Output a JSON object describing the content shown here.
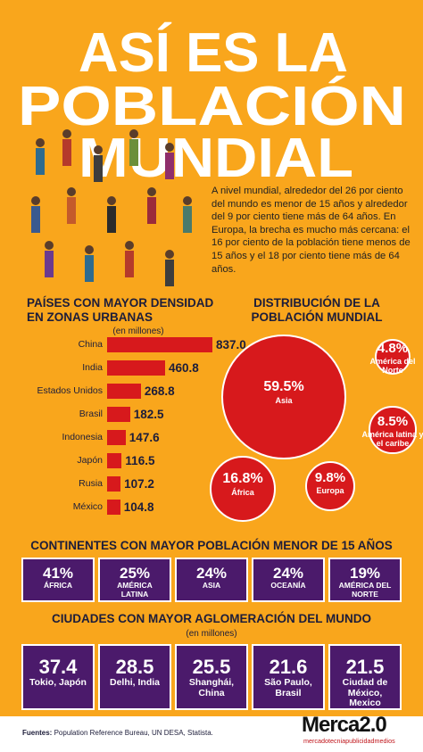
{
  "header": {
    "title": [
      "ASÍ ES LA",
      "POBLACIÓN",
      "MUNDIAL"
    ]
  },
  "intro": "A nivel mundial, alrededor del 26 por ciento del mundo es menor de 15 años y alrededor del 9 por ciento tiene más de 64 años. En Europa, la brecha es mucho más cercana: el 16 por ciento de la población tiene menos de 15 años y el 18 por ciento tiene más de 64 años.",
  "chart_data": [
    {
      "type": "bar",
      "orientation": "horizontal",
      "title": "PAÍSES CON MAYOR DENSIDAD EN ZONAS URBANAS",
      "subtitle": "(en millones)",
      "categories": [
        "China",
        "India",
        "Estados Unidos",
        "Brasil",
        "Indonesia",
        "Japón",
        "Rusia",
        "México"
      ],
      "values": [
        837.0,
        460.8,
        268.8,
        182.5,
        147.6,
        116.5,
        107.2,
        104.8
      ],
      "value_labels": [
        "837.0",
        "460.8",
        "268.8",
        "182.5",
        "147.6",
        "116.5",
        "107.2",
        "104.8"
      ],
      "color": "#d7191c"
    },
    {
      "type": "bubble",
      "title": "DISTRIBUCIÓN DE LA POBLACIÓN MUNDIAL",
      "categories": [
        "Asia",
        "América del Norte",
        "América latina y el caribe",
        "África",
        "Europa"
      ],
      "values": [
        59.5,
        4.8,
        8.5,
        16.8,
        9.8
      ],
      "value_labels": [
        "59.5%",
        "4.8%",
        "8.5%",
        "16.8%",
        "9.8%"
      ],
      "color": "#d7191c"
    }
  ],
  "continents": {
    "title": "CONTINENTES CON MAYOR POBLACIÓN MENOR DE 15 AÑOS",
    "items": [
      {
        "value": "41%",
        "label": "ÁFRICA"
      },
      {
        "value": "25%",
        "label": "AMÉRICA LATINA"
      },
      {
        "value": "24%",
        "label": "ASIA"
      },
      {
        "value": "24%",
        "label": "OCEANÍA"
      },
      {
        "value": "19%",
        "label": "AMÉRICA DEL NORTE"
      }
    ]
  },
  "cities": {
    "title": "CIUDADES CON MAYOR AGLOMERACIÓN DEL MUNDO",
    "subtitle": "(en millones)",
    "items": [
      {
        "value": "37.4",
        "label": "Tokio, Japón"
      },
      {
        "value": "28.5",
        "label": "Delhi, India"
      },
      {
        "value": "25.5",
        "label": "Shanghái, China"
      },
      {
        "value": "21.6",
        "label": "São Paulo, Brasil"
      },
      {
        "value": "21.5",
        "label": "Ciudad de México, Mexico"
      }
    ]
  },
  "footer": {
    "label": "Fuentes:",
    "text": "Population Reference Bureau, UN DESA, Statista.",
    "logo": "Merca2.0",
    "tagline": "mercadotecniapublicidadmedios"
  }
}
